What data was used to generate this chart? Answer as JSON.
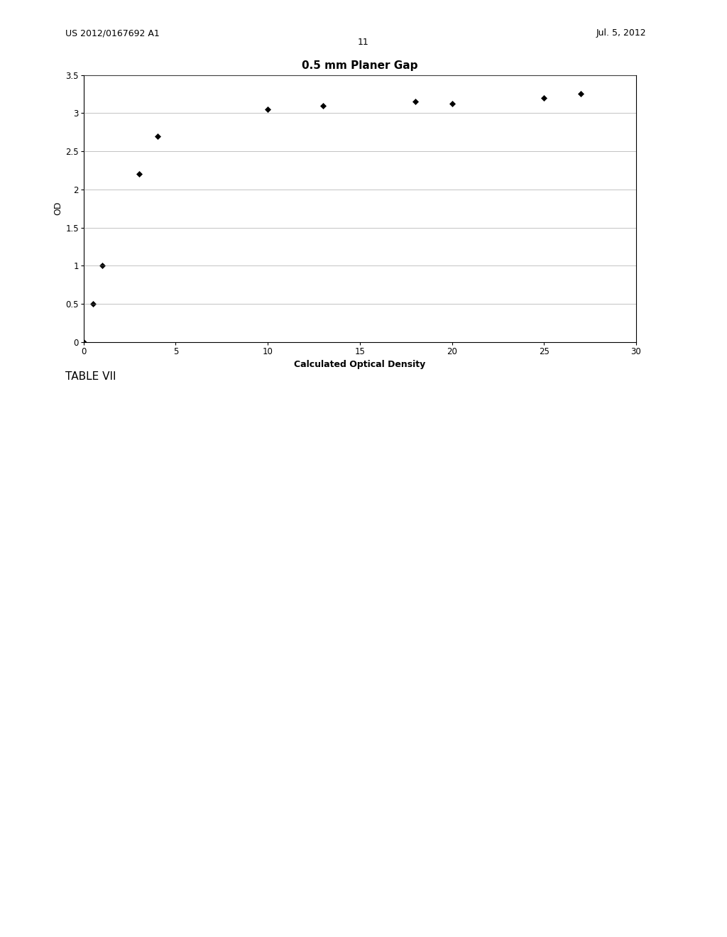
{
  "title": "0.5 mm Planer Gap",
  "xlabel": "Calculated Optical Density",
  "ylabel": "OD",
  "x_data": [
    0,
    0.5,
    1,
    3,
    4,
    10,
    13,
    18,
    20,
    25,
    27
  ],
  "y_data": [
    0,
    0.5,
    1.0,
    2.2,
    2.7,
    3.05,
    3.1,
    3.15,
    3.12,
    3.2,
    3.25
  ],
  "xlim": [
    0,
    30
  ],
  "ylim": [
    0,
    3.5
  ],
  "xticks": [
    0,
    5,
    10,
    15,
    20,
    25,
    30
  ],
  "yticks": [
    0,
    0.5,
    1.0,
    1.5,
    2.0,
    2.5,
    3.0,
    3.5
  ],
  "header_left": "US 2012/0167692 A1",
  "header_right": "Jul. 5, 2012",
  "page_number": "11",
  "footer_label": "TABLE VII",
  "bg_color": "#ffffff",
  "plot_bg_color": "#ffffff",
  "marker": "D",
  "marker_color": "#000000",
  "marker_size": 4,
  "grid_color": "#888888",
  "axis_color": "#000000",
  "title_fontsize": 11,
  "label_fontsize": 9,
  "tick_fontsize": 8.5
}
